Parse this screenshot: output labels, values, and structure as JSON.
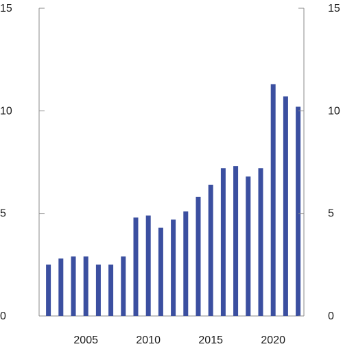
{
  "chart_data": {
    "type": "bar",
    "title": "",
    "xlabel": "",
    "ylabel": "",
    "x": [
      2002,
      2003,
      2004,
      2005,
      2006,
      2007,
      2008,
      2009,
      2010,
      2011,
      2012,
      2013,
      2014,
      2015,
      2016,
      2017,
      2018,
      2019,
      2020,
      2021,
      2022
    ],
    "values": [
      2.5,
      2.8,
      2.9,
      2.9,
      2.5,
      2.5,
      2.9,
      4.8,
      4.9,
      4.3,
      4.7,
      5.1,
      5.8,
      6.4,
      7.2,
      7.3,
      6.8,
      7.2,
      11.3,
      10.7,
      10.2
    ],
    "ylim": [
      0,
      15
    ],
    "y_ticks": [
      "0",
      "5",
      "10",
      "15"
    ],
    "x_tick_labels": [
      "2005",
      "2010",
      "2015",
      "2020"
    ],
    "grid": false,
    "legend": "none",
    "bar_color": "#3b4fa0",
    "axis_color": "#8a8a8a"
  }
}
